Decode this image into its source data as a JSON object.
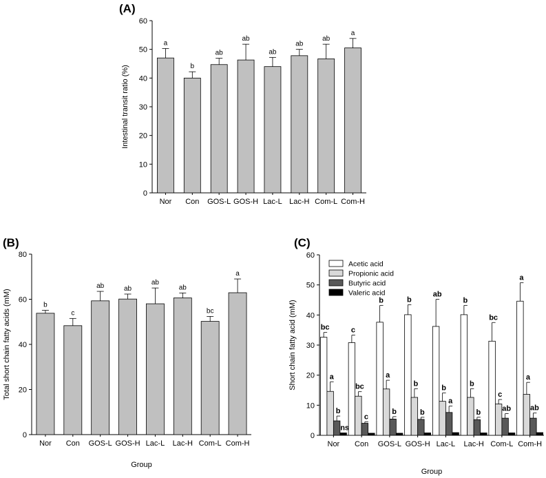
{
  "chart_data": [
    {
      "panel": "(A)",
      "type": "bar",
      "title": "",
      "xlabel": "",
      "ylabel": "Intestinal transit ratio (%)",
      "ylim": [
        0,
        60
      ],
      "yticks": [
        0,
        10,
        20,
        30,
        40,
        50,
        60
      ],
      "categories": [
        "Nor",
        "Con",
        "GOS-L",
        "GOS-H",
        "Lac-L",
        "Lac-H",
        "Com-L",
        "Com-H"
      ],
      "values": [
        47,
        40,
        44.7,
        46.3,
        44,
        47.8,
        46.7,
        50.5
      ],
      "errors": [
        3.3,
        2.2,
        2.2,
        5.5,
        3.2,
        2.2,
        5.1,
        3.3
      ],
      "labels": [
        "a",
        "b",
        "ab",
        "ab",
        "ab",
        "ab",
        "ab",
        "a"
      ],
      "bar_color": "#c0c0c0"
    },
    {
      "panel": "(B)",
      "type": "bar",
      "title": "",
      "xlabel": "Group",
      "ylabel": "Total short chain fatty acids (mM)",
      "ylim": [
        0,
        80
      ],
      "yticks": [
        0,
        20,
        40,
        60,
        80
      ],
      "categories": [
        "Nor",
        "Con",
        "GOS-L",
        "GOS-H",
        "Lac-L",
        "Lac-H",
        "Com-L",
        "Com-H"
      ],
      "values": [
        53.8,
        48.3,
        59.3,
        60.1,
        58,
        60.6,
        50.2,
        62.9
      ],
      "errors": [
        1.3,
        3.2,
        4.2,
        2.2,
        7,
        2.2,
        2.2,
        6.1
      ],
      "labels": [
        "b",
        "c",
        "ab",
        "ab",
        "ab",
        "ab",
        "bc",
        "a"
      ],
      "bar_color": "#c0c0c0"
    },
    {
      "panel": "(C)",
      "type": "bar",
      "title": "",
      "xlabel": "Group",
      "ylabel": "Short chain fatty acid (mM)",
      "ylim": [
        0,
        60
      ],
      "yticks": [
        0,
        10,
        20,
        30,
        40,
        50,
        60
      ],
      "categories": [
        "Nor",
        "Con",
        "GOS-L",
        "GOS-H",
        "Lac-L",
        "Lac-H",
        "Com-L",
        "Com-H"
      ],
      "legend_position": "top-left",
      "series": [
        {
          "name": "Acetic acid",
          "color": "#ffffff",
          "values": [
            32.6,
            30.8,
            37.6,
            40.1,
            36.2,
            40.1,
            31.3,
            44.6
          ],
          "errors": [
            1.6,
            2.5,
            5.6,
            3.3,
            9,
            3.1,
            6.2,
            6.1
          ],
          "labels": [
            "bc",
            "c",
            "b",
            "b",
            "ab",
            "b",
            "bc",
            "a"
          ]
        },
        {
          "name": "Propionic acid",
          "color": "#d9d9d9",
          "values": [
            14.6,
            13,
            15.4,
            12.6,
            11.3,
            12.6,
            10.4,
            13.6
          ],
          "errors": [
            3.2,
            1.5,
            2.9,
            2.9,
            2.8,
            2.9,
            1.5,
            4
          ],
          "labels": [
            "a",
            "bc",
            "a",
            "b",
            "b",
            "b",
            "c",
            "a"
          ]
        },
        {
          "name": "Butyric acid",
          "color": "#595959",
          "values": [
            4.8,
            4,
            5.4,
            5.3,
            7.6,
            5.2,
            5.7,
            5.7
          ],
          "errors": [
            1.6,
            0.5,
            0.8,
            0.7,
            2.1,
            0.8,
            1.5,
            1.7
          ],
          "labels": [
            "b",
            "c",
            "b",
            "b",
            "a",
            "b",
            "ab",
            "ab"
          ]
        },
        {
          "name": "Valeric acid",
          "color": "#000000",
          "values": [
            0.8,
            0.7,
            0.7,
            0.8,
            0.9,
            0.8,
            0.8,
            0.9
          ],
          "errors": [
            0,
            0,
            0,
            0,
            0,
            0,
            0,
            0
          ],
          "labels": [
            "ns",
            "",
            "",
            "",
            "",
            "",
            "",
            ""
          ]
        }
      ]
    }
  ]
}
